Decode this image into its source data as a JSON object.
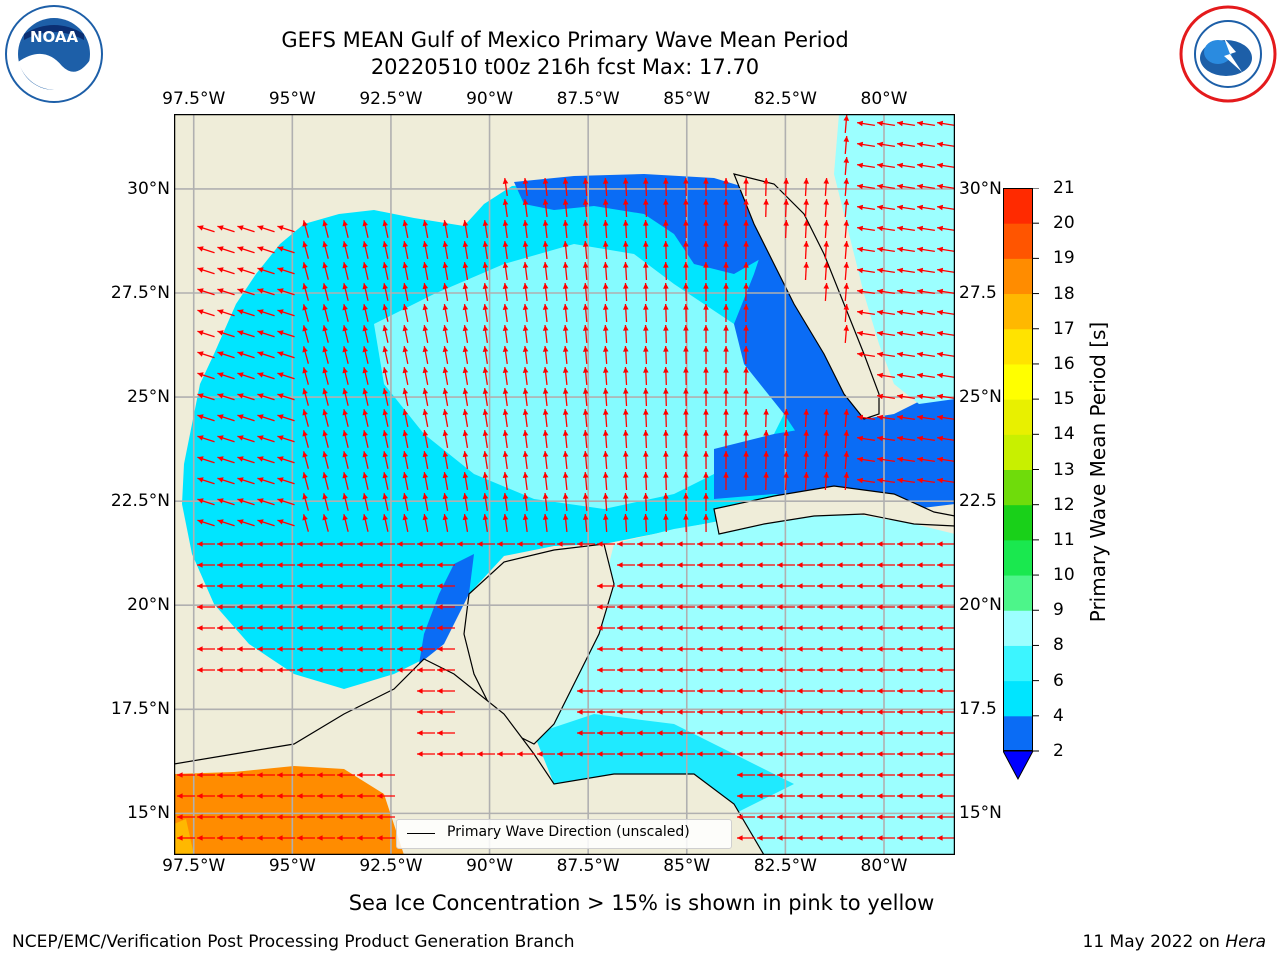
{
  "title": {
    "line1": "GEFS MEAN Gulf of Mexico Primary Wave Mean Period",
    "line2": "20220510 t00z 216h fcst   Max: 17.70"
  },
  "logos": {
    "noaa": {
      "text": "NOAA",
      "ring_text": "NATIONAL OCEANIC AND ATMOSPHERIC ADMINISTRATION · U.S. DEPARTMENT OF COMMERCE",
      "color": "#1d5fa8"
    },
    "nws": {
      "ring_text": "NATIONAL WEATHER SERVICE",
      "color": "#e41a1c"
    }
  },
  "map": {
    "lon_ticks": [
      "97.5°W",
      "95°W",
      "92.5°W",
      "90°W",
      "87.5°W",
      "85°W",
      "82.5°W",
      "80°W"
    ],
    "lon_values": [
      -97.5,
      -95,
      -92.5,
      -90,
      -87.5,
      -85,
      -82.5,
      -80
    ],
    "lat_ticks_left": [
      "30°N",
      "27.5°N",
      "25°N",
      "22.5°N",
      "20°N",
      "17.5°N",
      "15°N"
    ],
    "lat_ticks_right": [
      "30°N",
      "27.5",
      "25°N",
      "22.5",
      "20°N",
      "17.5",
      "15°N"
    ],
    "lat_values": [
      30,
      27.5,
      25,
      22.5,
      20,
      17.5,
      15
    ],
    "extent": {
      "lon_min": -98,
      "lon_max": -78.2,
      "lat_min": 14,
      "lat_max": 31.8
    },
    "land_color": "#efedd9",
    "arrow_color": "#ff0000",
    "legend_label": "Primary Wave Direction (unscaled)"
  },
  "colorbar": {
    "label": "Primary Wave Mean Period [s]",
    "ticks": [
      "2",
      "4",
      "6",
      "8",
      "9",
      "10",
      "11",
      "12",
      "13",
      "14",
      "15",
      "16",
      "17",
      "18",
      "19",
      "20",
      "21"
    ],
    "colors": [
      "#0a6cf5",
      "#00e5ff",
      "#3cf5ff",
      "#9cffff",
      "#4df58a",
      "#1ae84f",
      "#19d019",
      "#6fdc0b",
      "#c8f000",
      "#e8f000",
      "#ffff00",
      "#ffe300",
      "#ffb800",
      "#ff8c00",
      "#ff5500",
      "#ff2a00",
      "#ff0000"
    ],
    "under_color": "#0000ff"
  },
  "subtitle": "Sea Ice Concentration > 15% is shown in pink to yellow",
  "footer": {
    "left": "NCEP/EMC/Verification Post Processing Product Generation Branch",
    "right_date": "11 May 2022 on ",
    "right_host": "Hera"
  }
}
